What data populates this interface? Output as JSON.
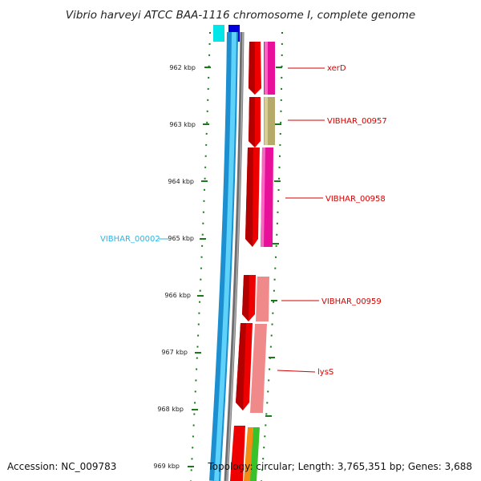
{
  "title": "Vibrio harveyi ATCC BAA-1116 chromosome I, complete genome",
  "footer": {
    "accession": "Accession: NC_009783",
    "topology": "Topology: circular; Length: 3,765,351 bp; Genes: 3,688"
  },
  "ticks": [
    "962 kbp",
    "963 kbp",
    "964 kbp",
    "965 kbp",
    "966 kbp",
    "967 kbp",
    "968 kbp",
    "969 kbp"
  ],
  "genes": {
    "xerD": "xerD",
    "g957": "VIBHAR_00957",
    "g958": "VIBHAR_00958",
    "g959": "VIBHAR_00959",
    "lysS": "lysS",
    "g002": "VIBHAR_00002"
  },
  "colors": {
    "red": "#ee0000",
    "magenta": "#e8109a",
    "olive": "#b5aa6a",
    "pink": "#f08a8a",
    "cyan": "#36b8f0",
    "gray": "#7a7a7a",
    "blue": "#0000dd",
    "tick_green": "#1a7a1a"
  }
}
